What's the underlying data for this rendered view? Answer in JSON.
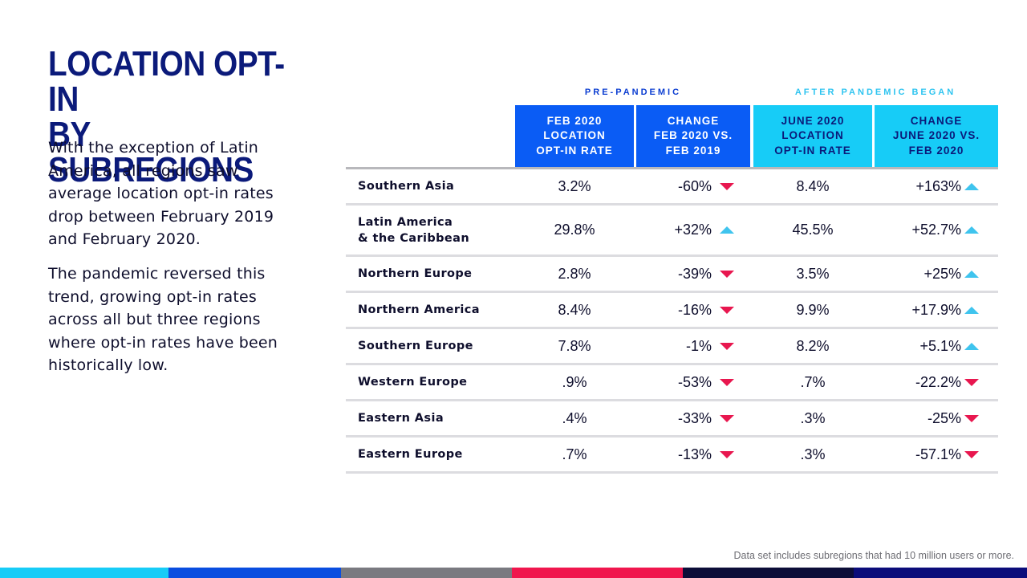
{
  "title_lines": [
    "LOCATION OPT-IN",
    "BY SUBREGIONS"
  ],
  "paragraphs": [
    "With the exception of Latin America, all regions saw average location opt-in rates drop between February 2019 and February 2020.",
    "The pandemic reversed this trend, growing opt-in rates across all but three regions where opt-in rates have been historically low."
  ],
  "group_labels": {
    "pre": "PRE-PANDEMIC",
    "post": "AFTER PANDEMIC BEGAN"
  },
  "headers": [
    [
      "FEB 2020",
      "LOCATION",
      "OPT-IN RATE"
    ],
    [
      "CHANGE",
      "FEB 2020 VS.",
      "FEB 2019"
    ],
    [
      "JUNE 2020",
      "LOCATION",
      "OPT-IN RATE"
    ],
    [
      "CHANGE",
      "JUNE 2020 VS.",
      "FEB 2020"
    ]
  ],
  "rows": [
    {
      "region": [
        "Southern Asia"
      ],
      "feb": "3.2%",
      "chg1": "-60%",
      "dir1": "down",
      "jun": "8.4%",
      "chg2": "+163%",
      "dir2": "up"
    },
    {
      "region": [
        "Latin America",
        "& the Caribbean"
      ],
      "feb": "29.8%",
      "chg1": "+32%",
      "dir1": "up",
      "jun": "45.5%",
      "chg2": "+52.7%",
      "dir2": "up"
    },
    {
      "region": [
        "Northern Europe"
      ],
      "feb": "2.8%",
      "chg1": "-39%",
      "dir1": "down",
      "jun": "3.5%",
      "chg2": "+25%",
      "dir2": "up"
    },
    {
      "region": [
        "Northern America"
      ],
      "feb": "8.4%",
      "chg1": "-16%",
      "dir1": "down",
      "jun": "9.9%",
      "chg2": "+17.9%",
      "dir2": "up"
    },
    {
      "region": [
        "Southern Europe"
      ],
      "feb": "7.8%",
      "chg1": "-1%",
      "dir1": "down",
      "jun": "8.2%",
      "chg2": "+5.1%",
      "dir2": "up"
    },
    {
      "region": [
        "Western Europe"
      ],
      "feb": ".9%",
      "chg1": "-53%",
      "dir1": "down",
      "jun": ".7%",
      "chg2": "-22.2%",
      "dir2": "down"
    },
    {
      "region": [
        "Eastern Asia"
      ],
      "feb": ".4%",
      "chg1": "-33%",
      "dir1": "down",
      "jun": ".3%",
      "chg2": "-25%",
      "dir2": "down"
    },
    {
      "region": [
        "Eastern Europe"
      ],
      "feb": ".7%",
      "chg1": "-13%",
      "dir1": "down",
      "jun": ".3%",
      "chg2": "-57.1%",
      "dir2": "down"
    }
  ],
  "footnote": "Data set includes subregions that had 10 million users or more.",
  "colors": {
    "title": "#0b1a7a",
    "pre_header": "#0a5cf5",
    "post_header": "#17ccf7",
    "up_arrow": "#3fc4ee",
    "down_arrow": "#e8174f",
    "stripes": [
      "#17ccf7",
      "#0a4de0",
      "#7a7a80",
      "#f0164d",
      "#0c0d38",
      "#0b0c7a"
    ]
  }
}
